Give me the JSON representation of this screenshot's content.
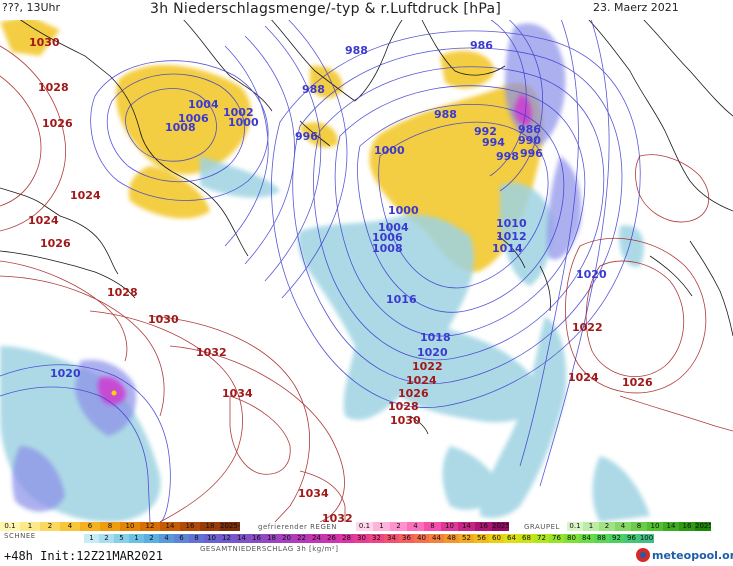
{
  "header": {
    "left": "???, 13Uhr",
    "title": "3h Niederschlagsmenge/-typ & r.Luftdruck [hPa]",
    "date": "23. Maerz 2021"
  },
  "colors": {
    "snow_yellow": "#f2c520",
    "rain_blue": "#9fd3e2",
    "rain_violet": "#8a8fe8",
    "iso_low": "#3a3ad0",
    "iso_high": "#a01818",
    "coast": "#1a1a1a",
    "ocean": "#ffffff"
  },
  "isobars": [
    {
      "value": "1030",
      "kind": "high"
    },
    {
      "value": "1028",
      "kind": "high"
    },
    {
      "value": "1026",
      "kind": "high"
    },
    {
      "value": "1024",
      "kind": "high"
    },
    {
      "value": "1024",
      "kind": "high"
    },
    {
      "value": "1026",
      "kind": "high"
    },
    {
      "value": "1028",
      "kind": "high"
    },
    {
      "value": "1030",
      "kind": "high"
    },
    {
      "value": "1032",
      "kind": "high"
    },
    {
      "value": "1034",
      "kind": "high"
    },
    {
      "value": "1034",
      "kind": "high"
    },
    {
      "value": "1032",
      "kind": "high"
    },
    {
      "value": "1020",
      "kind": "low"
    },
    {
      "value": "1004",
      "kind": "low"
    },
    {
      "value": "1006",
      "kind": "low"
    },
    {
      "value": "1008",
      "kind": "low"
    },
    {
      "value": "1002",
      "kind": "low"
    },
    {
      "value": "1000",
      "kind": "low"
    },
    {
      "value": "1000",
      "kind": "low"
    },
    {
      "value": "996",
      "kind": "low"
    },
    {
      "value": "988",
      "kind": "low"
    },
    {
      "value": "986",
      "kind": "low"
    },
    {
      "value": "988",
      "kind": "low"
    },
    {
      "value": "988",
      "kind": "low"
    },
    {
      "value": "992",
      "kind": "low"
    },
    {
      "value": "994",
      "kind": "low"
    },
    {
      "value": "998",
      "kind": "low"
    },
    {
      "value": "986",
      "kind": "low"
    },
    {
      "value": "990",
      "kind": "low"
    },
    {
      "value": "996",
      "kind": "low"
    },
    {
      "value": "1000",
      "kind": "low"
    },
    {
      "value": "1004",
      "kind": "low"
    },
    {
      "value": "1006",
      "kind": "low"
    },
    {
      "value": "1008",
      "kind": "low"
    },
    {
      "value": "1010",
      "kind": "low"
    },
    {
      "value": "1012",
      "kind": "low"
    },
    {
      "value": "1014",
      "kind": "low"
    },
    {
      "value": "1016",
      "kind": "low"
    },
    {
      "value": "1018",
      "kind": "low"
    },
    {
      "value": "1020",
      "kind": "low"
    },
    {
      "value": "1022",
      "kind": "high"
    },
    {
      "value": "1024",
      "kind": "high"
    },
    {
      "value": "1026",
      "kind": "high"
    },
    {
      "value": "1028",
      "kind": "high"
    },
    {
      "value": "1030",
      "kind": "high"
    },
    {
      "value": "1020",
      "kind": "low"
    },
    {
      "value": "1022",
      "kind": "high"
    },
    {
      "value": "1024",
      "kind": "high"
    },
    {
      "value": "1026",
      "kind": "high"
    }
  ],
  "legend": {
    "snow_label": "SCHNEE",
    "snow_values": [
      "0.1",
      "1",
      "2",
      "4",
      "6",
      "8",
      "10",
      "12",
      "14",
      "16",
      "18",
      "2025+"
    ],
    "freezing_label": "gefrierender REGEN",
    "freezing_values": [
      "0.1",
      "1",
      "2",
      "4",
      "8",
      "10",
      "14",
      "16",
      "2025+"
    ],
    "graupel_label": "GRAUPEL",
    "graupel_values": [
      "0.1",
      "1",
      "2",
      "4",
      "8",
      "10",
      "14",
      "16",
      "2025+"
    ],
    "total_values": [
      "1",
      "2",
      "5",
      "1",
      "2",
      "4",
      "6",
      "8",
      "10",
      "12",
      "14",
      "16",
      "18",
      "20",
      "22",
      "24",
      "26",
      "28",
      "30",
      "32",
      "34",
      "36",
      "40",
      "44",
      "48",
      "52",
      "56",
      "60",
      "64",
      "68",
      "72",
      "76",
      "80",
      "84",
      "88",
      "92",
      "96",
      "100"
    ],
    "total_label": "GESAMTNIEDERSCHLAG 3h [kg/m²]",
    "init": "+48h Init:12Z21MAR2021",
    "logo": "meteopool.org"
  }
}
